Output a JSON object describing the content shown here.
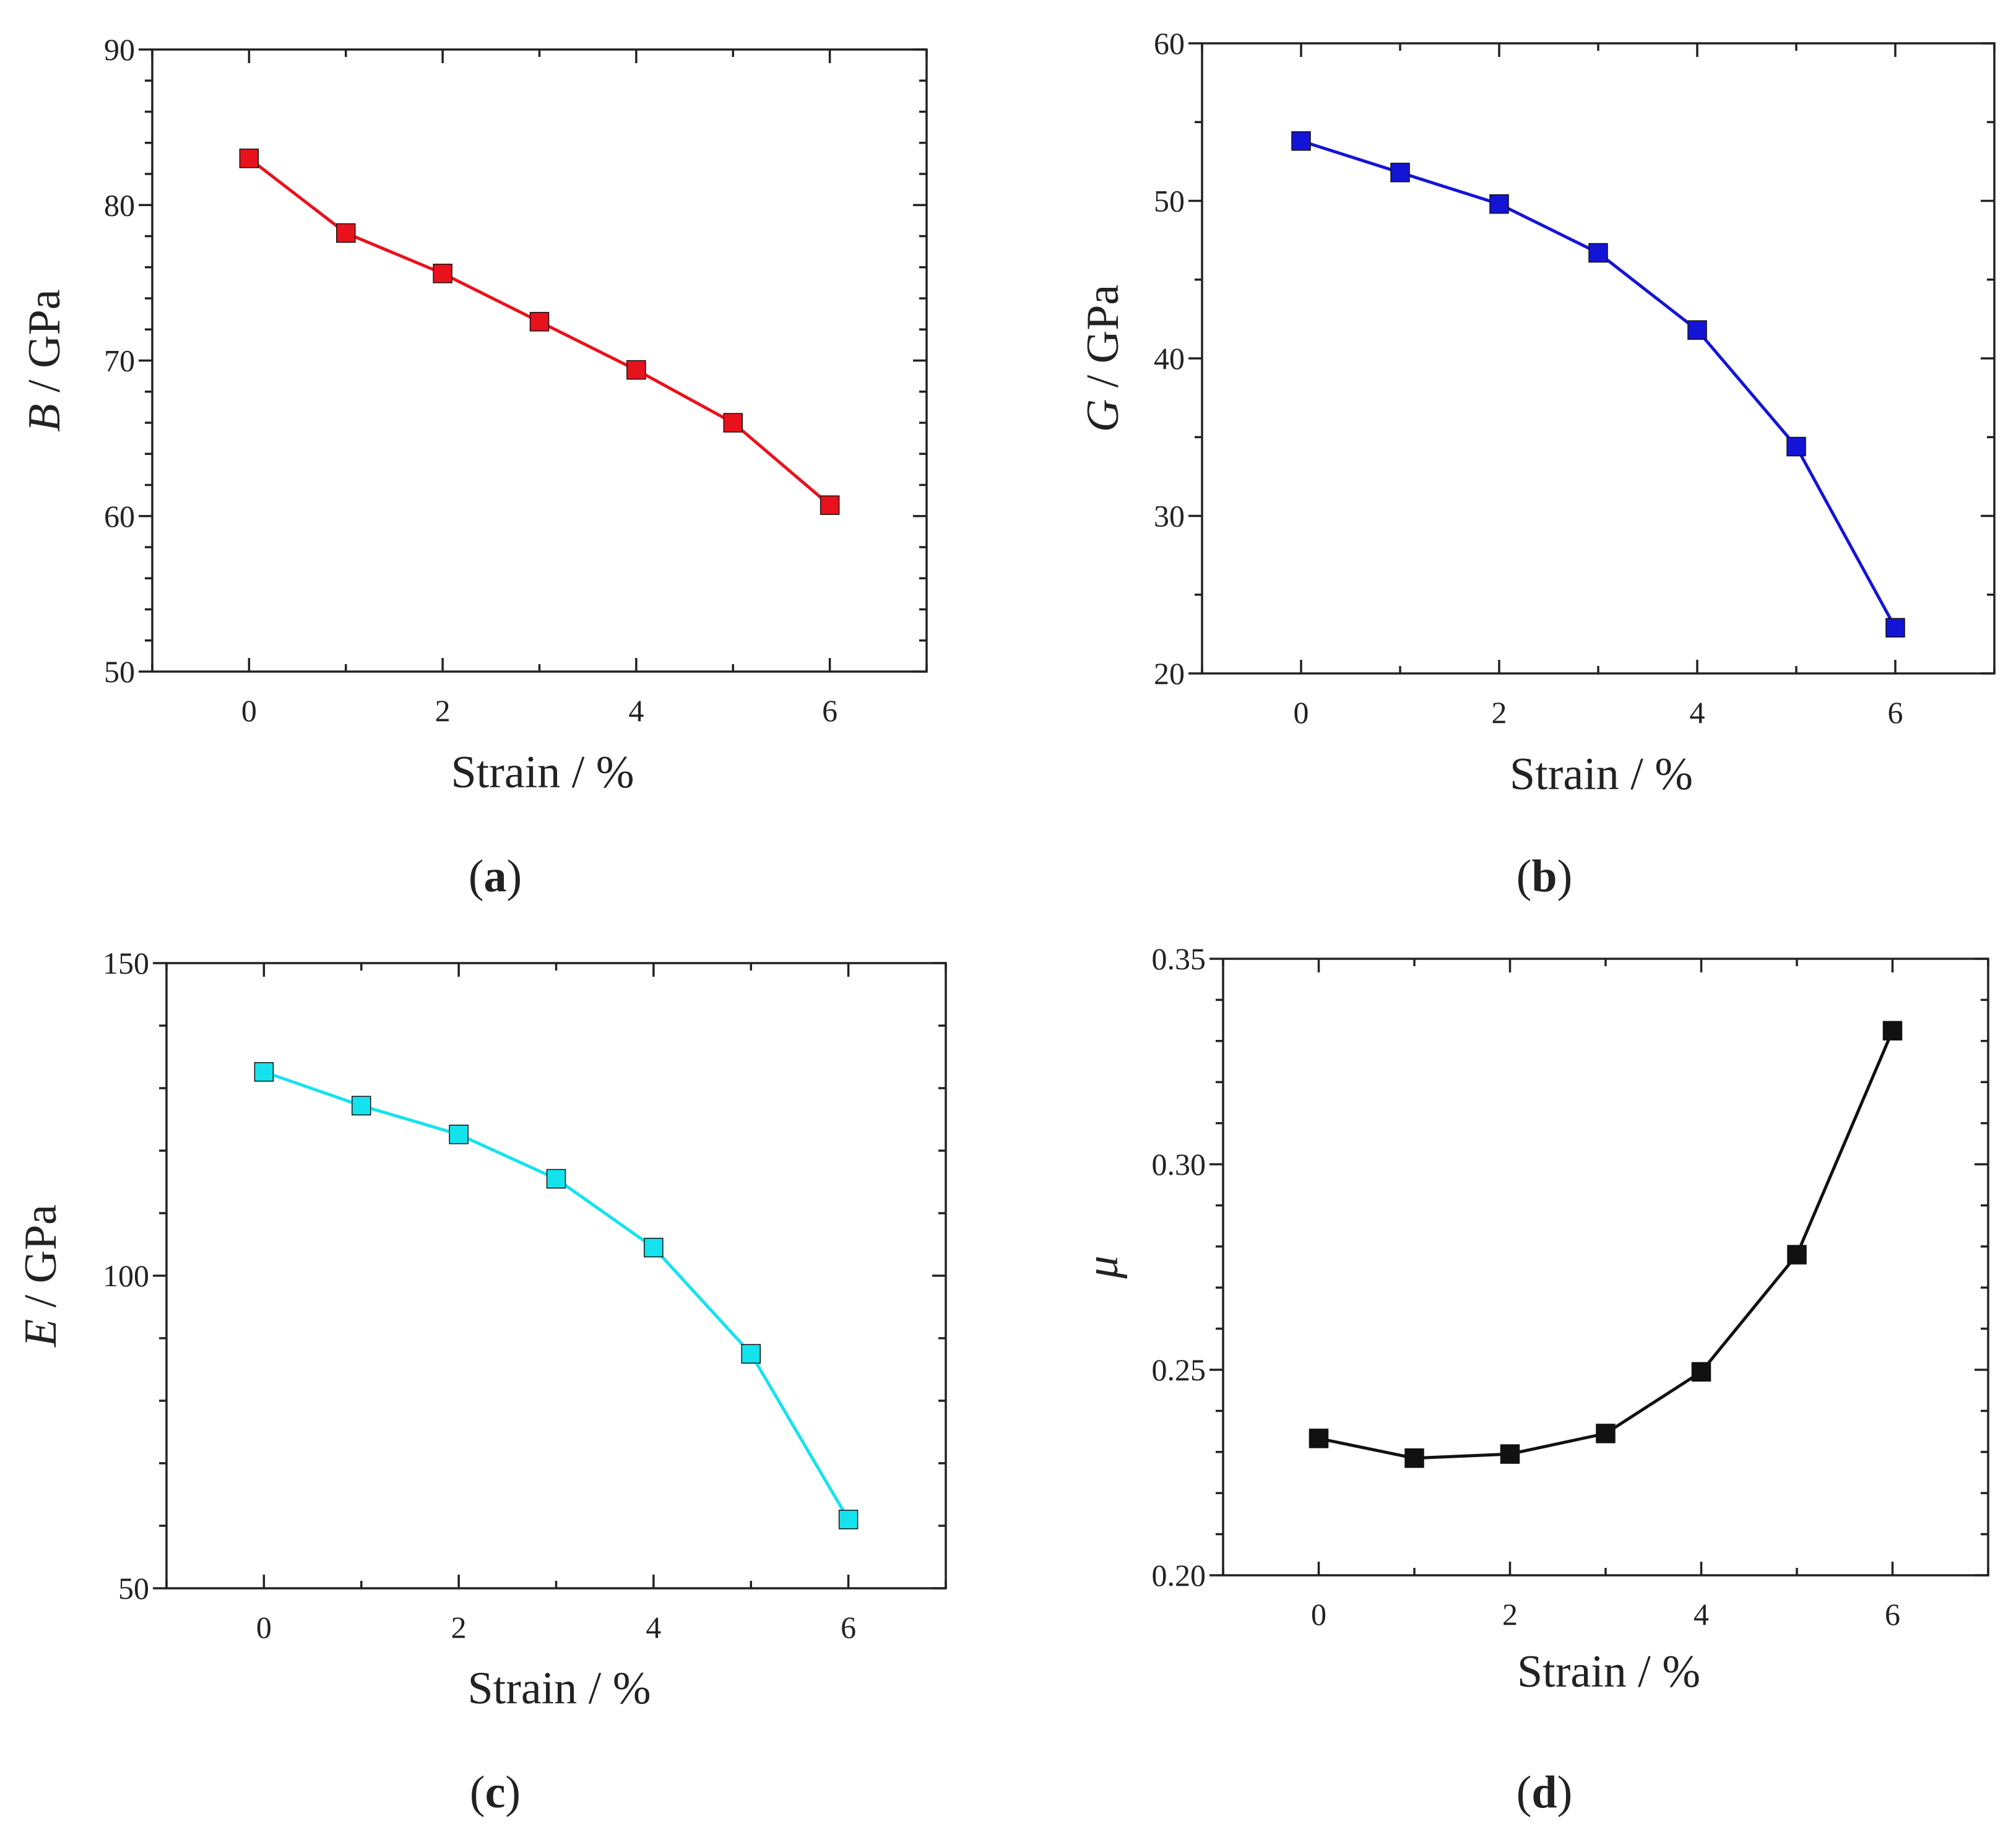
{
  "chart_data": [
    {
      "type": "line",
      "panel_label": "a",
      "x": [
        0,
        1,
        2,
        3,
        4,
        5,
        6
      ],
      "series": [
        {
          "name": "B",
          "values": [
            83.0,
            78.2,
            75.6,
            72.5,
            69.4,
            66.0,
            60.7
          ],
          "color": "#e8121c"
        }
      ],
      "xlabel": "Strain / %",
      "ylabel_symbol": "B",
      "ylabel_unit": " / GPa",
      "xlim": [
        -1,
        7
      ],
      "ylim": [
        50,
        90
      ],
      "xticks": [
        0,
        2,
        4,
        6
      ],
      "xtick_labels": [
        "0",
        "2",
        "4",
        "6"
      ],
      "yticks": [
        50,
        60,
        70,
        80,
        90
      ],
      "ytick_labels": [
        "50",
        "60",
        "70",
        "80",
        "90"
      ],
      "minor_x_step": 1,
      "minor_y_step": 2,
      "grid": false,
      "legend": "none"
    },
    {
      "type": "line",
      "panel_label": "b",
      "x": [
        0,
        1,
        2,
        3,
        4,
        5,
        6
      ],
      "series": [
        {
          "name": "G",
          "values": [
            53.8,
            51.8,
            49.8,
            46.7,
            41.8,
            34.4,
            22.9
          ],
          "color": "#1414d6"
        }
      ],
      "xlabel": "Strain / %",
      "ylabel_symbol": "G",
      "ylabel_unit": " / GPa",
      "xlim": [
        -1,
        7
      ],
      "ylim": [
        20,
        60
      ],
      "xticks": [
        0,
        2,
        4,
        6
      ],
      "xtick_labels": [
        "0",
        "2",
        "4",
        "6"
      ],
      "yticks": [
        20,
        30,
        40,
        50,
        60
      ],
      "ytick_labels": [
        "20",
        "30",
        "40",
        "50",
        "60"
      ],
      "minor_x_step": 1,
      "minor_y_step": 5,
      "grid": false,
      "legend": "none"
    },
    {
      "type": "line",
      "panel_label": "c",
      "x": [
        0,
        1,
        2,
        3,
        4,
        5,
        6
      ],
      "series": [
        {
          "name": "E",
          "values": [
            132.6,
            127.2,
            122.6,
            115.5,
            104.5,
            87.5,
            61.0
          ],
          "color": "#14e3ee"
        }
      ],
      "xlabel": "Strain / %",
      "ylabel_symbol": "E",
      "ylabel_unit": " / GPa",
      "xlim": [
        -1,
        7
      ],
      "ylim": [
        50,
        150
      ],
      "xticks": [
        0,
        2,
        4,
        6
      ],
      "xtick_labels": [
        "0",
        "2",
        "4",
        "6"
      ],
      "yticks": [
        50,
        100,
        150
      ],
      "ytick_labels": [
        "50",
        "100",
        "150"
      ],
      "minor_x_step": 1,
      "minor_y_step": 10,
      "grid": false,
      "legend": "none"
    },
    {
      "type": "line",
      "panel_label": "d",
      "x": [
        0,
        1,
        2,
        3,
        4,
        5,
        6
      ],
      "series": [
        {
          "name": "μ",
          "values": [
            0.2333,
            0.2285,
            0.2295,
            0.2345,
            0.2495,
            0.278,
            0.3325
          ],
          "color": "#111111"
        }
      ],
      "xlabel": "Strain / %",
      "ylabel_symbol": "μ",
      "ylabel_unit": "",
      "xlim": [
        -1,
        7
      ],
      "ylim": [
        0.2,
        0.35
      ],
      "xticks": [
        0,
        2,
        4,
        6
      ],
      "xtick_labels": [
        "0",
        "2",
        "4",
        "6"
      ],
      "yticks": [
        0.2,
        0.25,
        0.3,
        0.35
      ],
      "ytick_labels": [
        "0.20",
        "0.25",
        "0.30",
        "0.35"
      ],
      "minor_x_step": 1,
      "minor_y_step": 0.01,
      "grid": false,
      "legend": "none"
    }
  ]
}
